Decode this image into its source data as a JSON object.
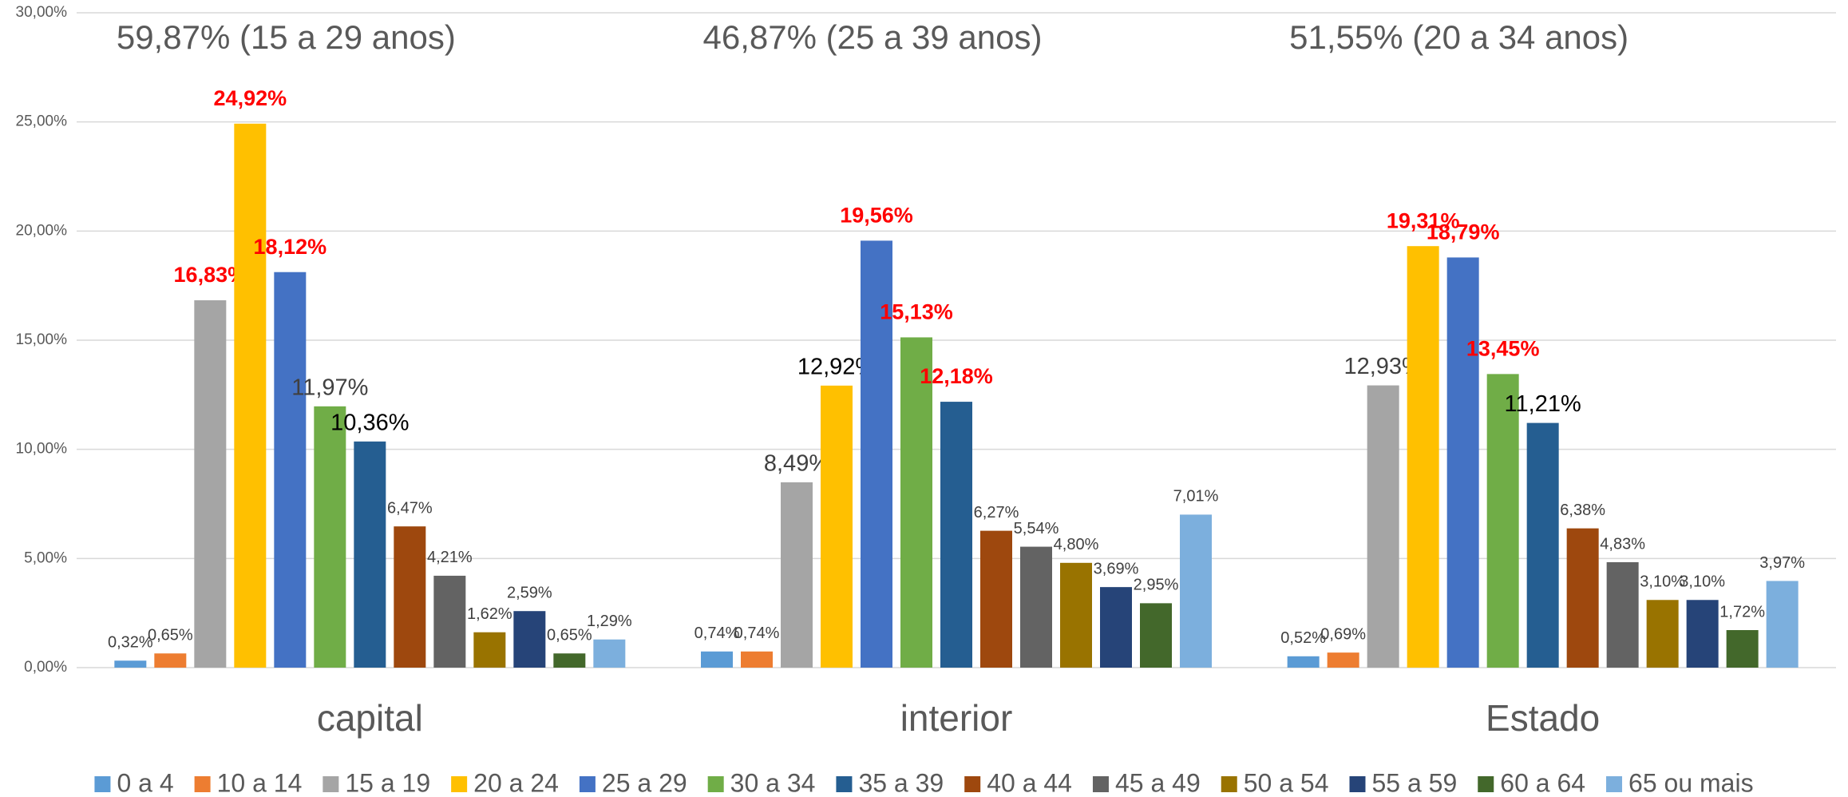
{
  "chart_data": {
    "type": "bar",
    "annotations": [
      "59,87% (15 a 29 anos)",
      "46,87% (25 a 39 anos)",
      "51,55% (20 a 34 anos)"
    ],
    "categories": [
      "capital",
      "interior",
      "Estado"
    ],
    "ylim": [
      0,
      30
    ],
    "yticks": [
      {
        "value": 0,
        "label": "0,00%"
      },
      {
        "value": 5,
        "label": "5,00%"
      },
      {
        "value": 10,
        "label": "10,00%"
      },
      {
        "value": 15,
        "label": "15,00%"
      },
      {
        "value": 20,
        "label": "20,00%"
      },
      {
        "value": 25,
        "label": "25,00%"
      },
      {
        "value": 30,
        "label": "30,00%"
      }
    ],
    "grid": true,
    "legend": "bottom",
    "series": [
      {
        "name": "0 a 4",
        "color": "#5b9bd5",
        "values": [
          0.32,
          0.74,
          0.52
        ],
        "value_labels": [
          "0,32%",
          "0,74%",
          "0,52%"
        ],
        "value_label_colors": [
          "#404040",
          "#404040",
          "#404040"
        ]
      },
      {
        "name": "10 a 14",
        "color": "#ed7d31",
        "values": [
          0.65,
          0.74,
          0.69
        ],
        "value_labels": [
          "0,65%",
          "0,74%",
          "0,69%"
        ],
        "value_label_colors": [
          "#404040",
          "#404040",
          "#404040"
        ]
      },
      {
        "name": "15 a 19",
        "color": "#a5a5a5",
        "values": [
          16.83,
          8.49,
          12.93
        ],
        "value_labels": [
          "16,83%",
          "8,49%",
          "12,93%"
        ],
        "value_label_colors": [
          "#ff0000",
          "#404040",
          "#404040"
        ]
      },
      {
        "name": "20 a 24",
        "color": "#ffc000",
        "values": [
          24.92,
          12.92,
          19.31
        ],
        "value_labels": [
          "24,92%",
          "12,92%",
          "19,31%"
        ],
        "value_label_colors": [
          "#ff0000",
          "#000000",
          "#ff0000"
        ]
      },
      {
        "name": "25 a 29",
        "color": "#4472c4",
        "values": [
          18.12,
          19.56,
          18.79
        ],
        "value_labels": [
          "18,12%",
          "19,56%",
          "18,79%"
        ],
        "value_label_colors": [
          "#ff0000",
          "#ff0000",
          "#ff0000"
        ]
      },
      {
        "name": "30 a 34",
        "color": "#70ad47",
        "values": [
          11.97,
          15.13,
          13.45
        ],
        "value_labels": [
          "11,97%",
          "15,13%",
          "13,45%"
        ],
        "value_label_colors": [
          "#404040",
          "#ff0000",
          "#ff0000"
        ]
      },
      {
        "name": "35 a 39",
        "color": "#255e91",
        "values": [
          10.36,
          12.18,
          11.21
        ],
        "value_labels": [
          "10,36%",
          "12,18%",
          "11,21%"
        ],
        "value_label_colors": [
          "#000000",
          "#ff0000",
          "#000000"
        ]
      },
      {
        "name": "40 a 44",
        "color": "#9e480e",
        "values": [
          6.47,
          6.27,
          6.38
        ],
        "value_labels": [
          "6,47%",
          "6,27%",
          "6,38%"
        ],
        "value_label_colors": [
          "#404040",
          "#404040",
          "#404040"
        ]
      },
      {
        "name": "45 a 49",
        "color": "#636363",
        "values": [
          4.21,
          5.54,
          4.83
        ],
        "value_labels": [
          "4,21%",
          "5,54%",
          "4,83%"
        ],
        "value_label_colors": [
          "#404040",
          "#404040",
          "#404040"
        ]
      },
      {
        "name": "50 a 54",
        "color": "#997300",
        "values": [
          1.62,
          4.8,
          3.1
        ],
        "value_labels": [
          "1,62%",
          "4,80%",
          "3,10%"
        ],
        "value_label_colors": [
          "#404040",
          "#404040",
          "#404040"
        ]
      },
      {
        "name": "55 a 59",
        "color": "#264478",
        "values": [
          2.59,
          3.69,
          3.1
        ],
        "value_labels": [
          "2,59%",
          "3,69%",
          "3,10%"
        ],
        "value_label_colors": [
          "#404040",
          "#404040",
          "#404040"
        ]
      },
      {
        "name": "60 a 64",
        "color": "#43682b",
        "values": [
          0.65,
          2.95,
          1.72
        ],
        "value_labels": [
          "0,65%",
          "2,95%",
          "1,72%"
        ],
        "value_label_colors": [
          "#404040",
          "#404040",
          "#404040"
        ]
      },
      {
        "name": "65 ou mais",
        "color": "#7cafdd",
        "values": [
          1.29,
          7.01,
          3.97
        ],
        "value_labels": [
          "1,29%",
          "7,01%",
          "3,97%"
        ],
        "value_label_colors": [
          "#404040",
          "#404040",
          "#404040"
        ]
      }
    ]
  }
}
